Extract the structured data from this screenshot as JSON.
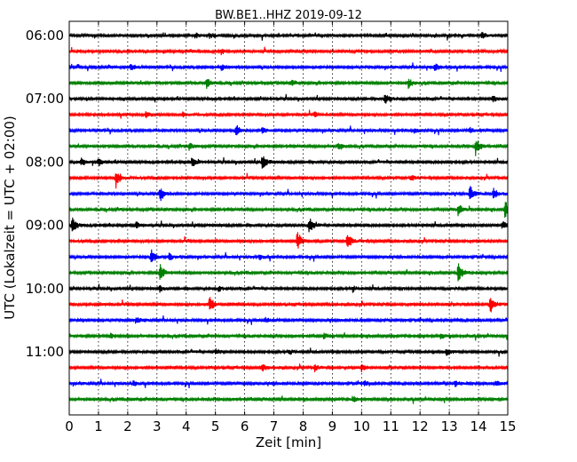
{
  "chart_data": {
    "type": "line",
    "title": "BW.BE1..HHZ 2019-09-12",
    "xlabel": "Zeit  [min]",
    "ylabel": "UTC (Lokalzeit = UTC + 02:00)",
    "xlim": [
      0,
      15
    ],
    "x_ticks": [
      "0",
      "1",
      "2",
      "3",
      "4",
      "5",
      "6",
      "7",
      "8",
      "9",
      "10",
      "11",
      "12",
      "13",
      "14",
      "15"
    ],
    "y_ticks": [
      "06:00",
      "07:00",
      "08:00",
      "09:00",
      "10:00",
      "11:00"
    ],
    "grid": true,
    "colors": [
      "#000000",
      "#ff0000",
      "#0000ff",
      "#008000"
    ],
    "traces": [
      {
        "start": "06:00",
        "events": [
          [
            4.3,
            0.35
          ],
          [
            4.8,
            0.3
          ],
          [
            14.1,
            0.3
          ]
        ]
      },
      {
        "start": "06:15",
        "events": [
          [
            5.2,
            0.3
          ]
        ]
      },
      {
        "start": "06:30",
        "events": [
          [
            2.1,
            0.3
          ],
          [
            5.2,
            0.3
          ],
          [
            12.5,
            0.35
          ]
        ]
      },
      {
        "start": "06:45",
        "events": [
          [
            4.7,
            0.55
          ],
          [
            7.6,
            0.3
          ],
          [
            11.6,
            0.5
          ]
        ]
      },
      {
        "start": "07:00",
        "events": [
          [
            10.8,
            0.7
          ],
          [
            14.5,
            0.3
          ]
        ]
      },
      {
        "start": "07:15",
        "events": [
          [
            2.6,
            0.35
          ],
          [
            3.9,
            0.3
          ],
          [
            8.4,
            0.3
          ]
        ]
      },
      {
        "start": "07:30",
        "events": [
          [
            5.7,
            0.65
          ],
          [
            6.6,
            0.3
          ],
          [
            11.8,
            0.3
          ],
          [
            13.7,
            0.3
          ]
        ]
      },
      {
        "start": "07:45",
        "events": [
          [
            4.1,
            0.4
          ],
          [
            9.2,
            0.5
          ],
          [
            13.9,
            0.95
          ]
        ]
      },
      {
        "start": "08:00",
        "events": [
          [
            0.4,
            0.5
          ],
          [
            1.0,
            0.4
          ],
          [
            4.2,
            0.55
          ],
          [
            6.6,
            0.95
          ]
        ]
      },
      {
        "start": "08:15",
        "events": [
          [
            1.6,
            1.0
          ],
          [
            11.7,
            0.3
          ]
        ]
      },
      {
        "start": "08:30",
        "events": [
          [
            3.1,
            0.9
          ],
          [
            13.7,
            0.9
          ],
          [
            14.5,
            0.6
          ]
        ]
      },
      {
        "start": "08:45",
        "events": [
          [
            13.3,
            0.7
          ],
          [
            14.9,
            1.0
          ]
        ]
      },
      {
        "start": "09:00",
        "events": [
          [
            0.1,
            0.95
          ],
          [
            2.3,
            0.3
          ],
          [
            8.2,
            0.9
          ],
          [
            14.8,
            0.5
          ]
        ]
      },
      {
        "start": "09:15",
        "events": [
          [
            7.8,
            1.0
          ],
          [
            9.5,
            1.0
          ]
        ]
      },
      {
        "start": "09:30",
        "events": [
          [
            2.8,
            0.9
          ],
          [
            3.4,
            0.4
          ],
          [
            6.5,
            0.3
          ]
        ]
      },
      {
        "start": "09:45",
        "events": [
          [
            3.1,
            0.9
          ],
          [
            13.3,
            1.0
          ]
        ]
      },
      {
        "start": "10:00",
        "events": [
          [
            3.1,
            0.3
          ],
          [
            5.1,
            0.3
          ],
          [
            9.7,
            0.3
          ]
        ]
      },
      {
        "start": "10:15",
        "events": [
          [
            4.8,
            0.9
          ],
          [
            14.4,
            1.0
          ]
        ]
      },
      {
        "start": "10:30",
        "events": [
          [
            2.3,
            0.3
          ],
          [
            6.7,
            0.3
          ]
        ]
      },
      {
        "start": "10:45",
        "events": [
          [
            1.4,
            0.3
          ],
          [
            8.7,
            0.3
          ],
          [
            12.7,
            0.3
          ]
        ]
      },
      {
        "start": "11:00",
        "events": [
          [
            5.0,
            0.3
          ],
          [
            7.5,
            0.3
          ],
          [
            12.9,
            0.5
          ]
        ]
      },
      {
        "start": "11:15",
        "events": [
          [
            6.6,
            0.45
          ],
          [
            8.4,
            0.35
          ],
          [
            10.0,
            0.35
          ],
          [
            15.0,
            0.3
          ]
        ]
      },
      {
        "start": "11:30",
        "events": [
          [
            2.2,
            0.3
          ],
          [
            10.1,
            0.3
          ],
          [
            13.2,
            0.3
          ],
          [
            14.6,
            0.3
          ]
        ]
      },
      {
        "start": "11:45",
        "events": [
          [
            9.7,
            0.35
          ]
        ]
      }
    ]
  }
}
